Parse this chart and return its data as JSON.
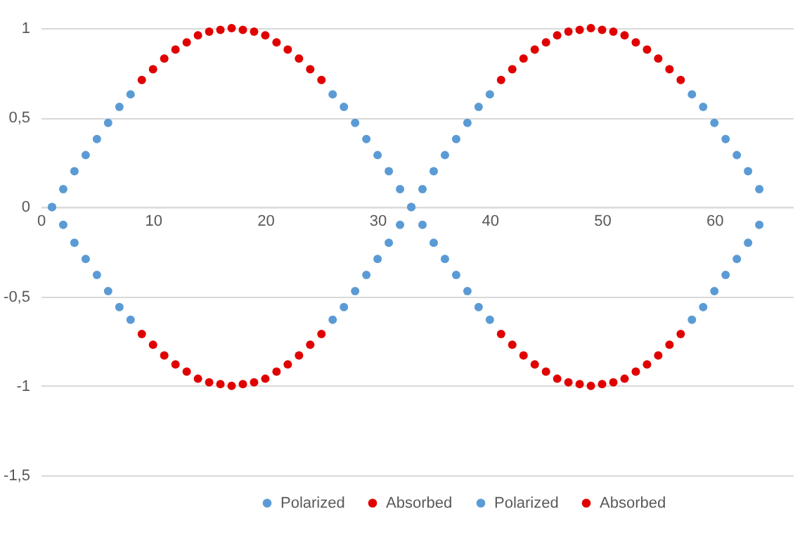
{
  "chart_data": {
    "type": "scatter",
    "marker": "circle",
    "legend": "bottom",
    "grid": "y",
    "xlim": [
      0,
      67
    ],
    "xticks": [
      0,
      10,
      20,
      30,
      40,
      50,
      60
    ],
    "ylim": [
      -1.5,
      1
    ],
    "yticks": [
      1,
      {
        "value": 0.5,
        "label": "0,5"
      },
      0,
      {
        "value": -0.5,
        "label": "-0,5"
      },
      -1,
      {
        "value": -1.5,
        "label": "-1,5"
      }
    ],
    "series": [
      {
        "name": "Polarized",
        "color": "#5b9bd5",
        "x": [
          1,
          2,
          3,
          4,
          5,
          6,
          7,
          8,
          26,
          27,
          28,
          29,
          30,
          31,
          32,
          33,
          34,
          35,
          36,
          37,
          38,
          39,
          40,
          58,
          59,
          60,
          61,
          62,
          63,
          64
        ],
        "values": [
          0,
          0.1,
          0.2,
          0.29,
          0.38,
          0.47,
          0.56,
          0.63,
          0.63,
          0.56,
          0.47,
          0.38,
          0.29,
          0.2,
          0.1,
          0,
          0.1,
          0.2,
          0.29,
          0.38,
          0.47,
          0.56,
          0.63,
          0.63,
          0.56,
          0.47,
          0.38,
          0.29,
          0.2,
          0.1
        ]
      },
      {
        "name": "Absorbed",
        "color": "#e00000",
        "x": [
          9,
          10,
          11,
          12,
          13,
          14,
          15,
          16,
          17,
          18,
          19,
          20,
          21,
          22,
          23,
          24,
          25,
          41,
          42,
          43,
          44,
          45,
          46,
          47,
          48,
          49,
          50,
          51,
          52,
          53,
          54,
          55,
          56,
          57
        ],
        "values": [
          0.71,
          0.77,
          0.83,
          0.88,
          0.92,
          0.96,
          0.98,
          0.99,
          1,
          0.99,
          0.98,
          0.96,
          0.92,
          0.88,
          0.83,
          0.77,
          0.71,
          0.71,
          0.77,
          0.83,
          0.88,
          0.92,
          0.96,
          0.98,
          0.99,
          1,
          0.99,
          0.98,
          0.96,
          0.92,
          0.88,
          0.83,
          0.77,
          0.71
        ]
      },
      {
        "name": "Polarized",
        "color": "#5b9bd5",
        "x": [
          1,
          2,
          3,
          4,
          5,
          6,
          7,
          8,
          26,
          27,
          28,
          29,
          30,
          31,
          32,
          33,
          34,
          35,
          36,
          37,
          38,
          39,
          40,
          58,
          59,
          60,
          61,
          62,
          63,
          64
        ],
        "values": [
          0,
          -0.1,
          -0.2,
          -0.29,
          -0.38,
          -0.47,
          -0.56,
          -0.63,
          -0.63,
          -0.56,
          -0.47,
          -0.38,
          -0.29,
          -0.2,
          -0.1,
          0,
          -0.1,
          -0.2,
          -0.29,
          -0.38,
          -0.47,
          -0.56,
          -0.63,
          -0.63,
          -0.56,
          -0.47,
          -0.38,
          -0.29,
          -0.2,
          -0.1
        ]
      },
      {
        "name": "Absorbed",
        "color": "#e00000",
        "x": [
          9,
          10,
          11,
          12,
          13,
          14,
          15,
          16,
          17,
          18,
          19,
          20,
          21,
          22,
          23,
          24,
          25,
          41,
          42,
          43,
          44,
          45,
          46,
          47,
          48,
          49,
          50,
          51,
          52,
          53,
          54,
          55,
          56,
          57
        ],
        "values": [
          -0.71,
          -0.77,
          -0.83,
          -0.88,
          -0.92,
          -0.96,
          -0.98,
          -0.99,
          -1,
          -0.99,
          -0.98,
          -0.96,
          -0.92,
          -0.88,
          -0.83,
          -0.77,
          -0.71,
          -0.71,
          -0.77,
          -0.83,
          -0.88,
          -0.92,
          -0.96,
          -0.98,
          -0.99,
          -1,
          -0.99,
          -0.98,
          -0.96,
          -0.92,
          -0.88,
          -0.83,
          -0.77,
          -0.71
        ]
      }
    ]
  }
}
